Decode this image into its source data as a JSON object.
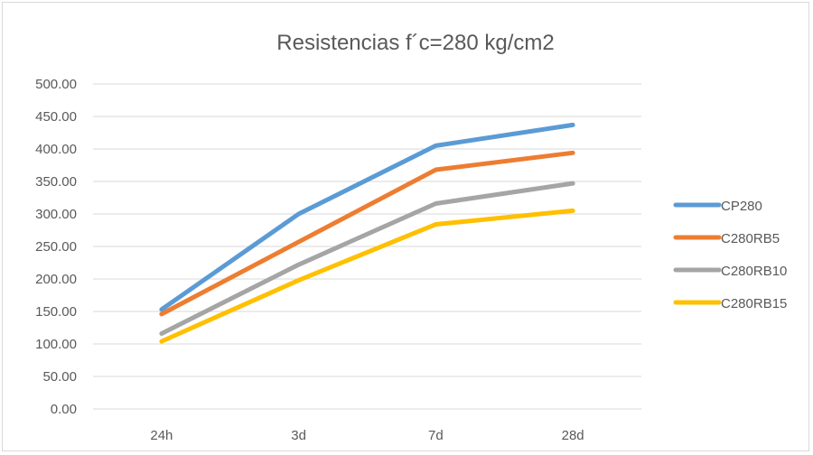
{
  "chart_data": {
    "type": "line",
    "title": "Resistencias f´c=280 kg/cm2",
    "xlabel": "",
    "ylabel": "",
    "categories": [
      "24h",
      "3d",
      "7d",
      "28d"
    ],
    "ylim": [
      0,
      500
    ],
    "yticks": [
      "0.00",
      "50.00",
      "100.00",
      "150.00",
      "200.00",
      "250.00",
      "300.00",
      "350.00",
      "400.00",
      "450.00",
      "500.00"
    ],
    "grid": true,
    "legend_position": "right",
    "series": [
      {
        "name": "CP280",
        "color": "#5B9BD5",
        "values": [
          153,
          300,
          405,
          437
        ]
      },
      {
        "name": "C280RB5",
        "color": "#ED7D31",
        "values": [
          146,
          257,
          368,
          394
        ]
      },
      {
        "name": "C280RB10",
        "color": "#A5A5A5",
        "values": [
          116,
          222,
          316,
          347
        ]
      },
      {
        "name": "C280RB15",
        "color": "#FFC000",
        "values": [
          104,
          198,
          284,
          305
        ]
      }
    ]
  }
}
